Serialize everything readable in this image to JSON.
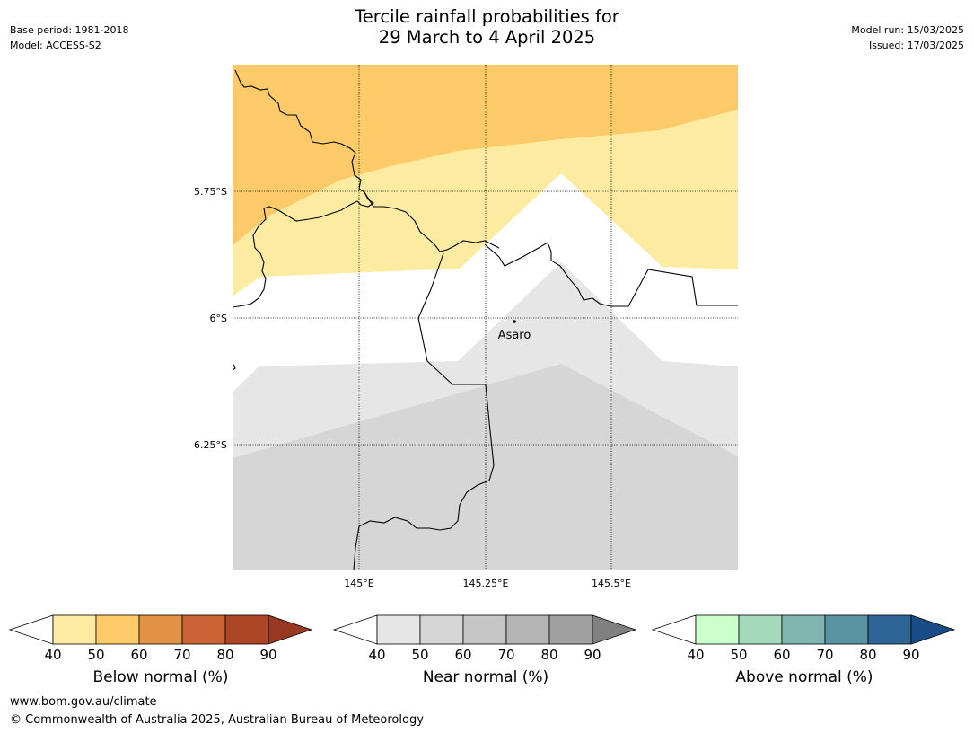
{
  "title": {
    "line1": "Tercile rainfall probabilities for",
    "line2": "29 March to 4 April 2025"
  },
  "meta": {
    "base_period": "Base period: 1981-2018",
    "model": "Model: ACCESS-S2",
    "model_run": "Model run: 15/03/2025",
    "issued": "Issued: 17/03/2025"
  },
  "map": {
    "lat_labels": [
      "5.75°S",
      "6°S",
      "6.25°S"
    ],
    "lon_labels": [
      "145°E",
      "145.25°E",
      "145.5°E"
    ],
    "place": {
      "name": "Asaro"
    },
    "colors": {
      "below_50": "#fdeba1",
      "below_60": "#fdca69",
      "near_50": "#e6e6e6",
      "near_60": "#d6d6d6"
    }
  },
  "legends": [
    {
      "title": "Below normal (%)",
      "ticks": [
        "40",
        "50",
        "60",
        "70",
        "80",
        "90"
      ],
      "colors": [
        "#fdeba1",
        "#fdca69",
        "#e19244",
        "#cb6334",
        "#ad4627",
        "#973823"
      ]
    },
    {
      "title": "Near normal (%)",
      "ticks": [
        "40",
        "50",
        "60",
        "70",
        "80",
        "90"
      ],
      "colors": [
        "#e6e6e6",
        "#d6d6d6",
        "#c6c6c6",
        "#b4b4b4",
        "#a0a0a0",
        "#808080"
      ]
    },
    {
      "title": "Above normal (%)",
      "ticks": [
        "40",
        "50",
        "60",
        "70",
        "80",
        "90"
      ],
      "colors": [
        "#cbffcb",
        "#a4d9bb",
        "#7fb6b0",
        "#5a93a1",
        "#2f6497",
        "#184c86"
      ]
    }
  ],
  "footer": {
    "url": "www.bom.gov.au/climate",
    "copyright": "© Commonwealth of Australia 2025, Australian Bureau of Meteorology"
  }
}
